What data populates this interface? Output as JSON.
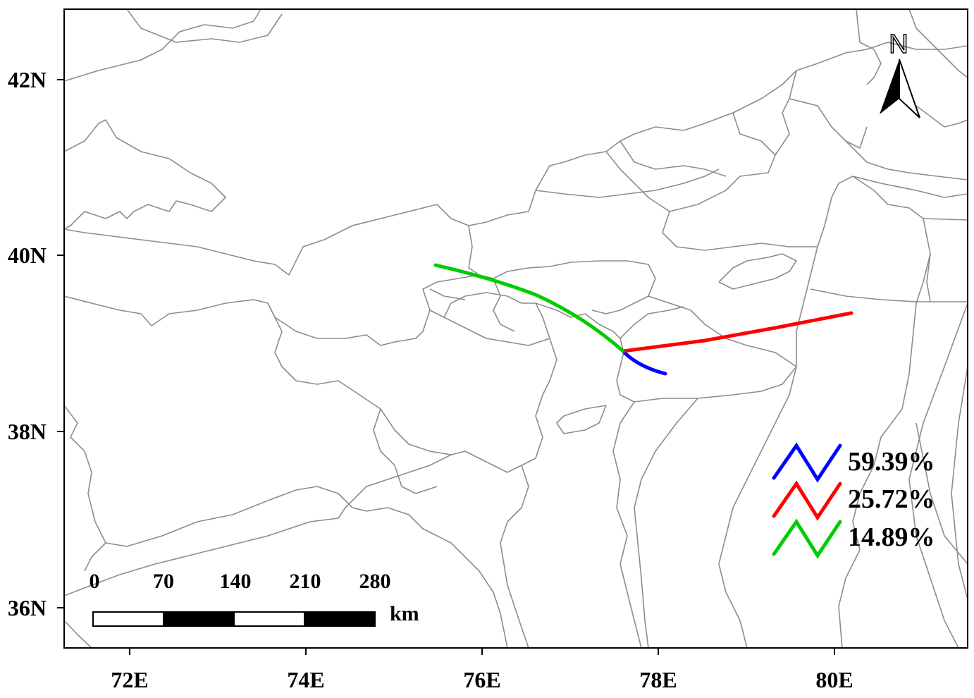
{
  "map": {
    "x_ticks": [
      {
        "lon": 72,
        "label": "72E"
      },
      {
        "lon": 74,
        "label": "74E"
      },
      {
        "lon": 76,
        "label": "76E"
      },
      {
        "lon": 78,
        "label": "78E"
      },
      {
        "lon": 80,
        "label": "80E"
      }
    ],
    "y_ticks": [
      {
        "lat": 36,
        "label": "36N"
      },
      {
        "lat": 38,
        "label": "38N"
      },
      {
        "lat": 40,
        "label": "40N"
      },
      {
        "lat": 42,
        "label": "42N"
      }
    ],
    "north_arrow_label": "N",
    "scale_bar": {
      "labels": [
        "0",
        "70",
        "140",
        "210",
        "280"
      ],
      "unit": "km"
    },
    "trajectories": [
      {
        "color": "#0000ff",
        "percent": "59.39%"
      },
      {
        "color": "#ff0000",
        "percent": "25.72%"
      },
      {
        "color": "#00cc00",
        "percent": "14.89%"
      }
    ]
  }
}
